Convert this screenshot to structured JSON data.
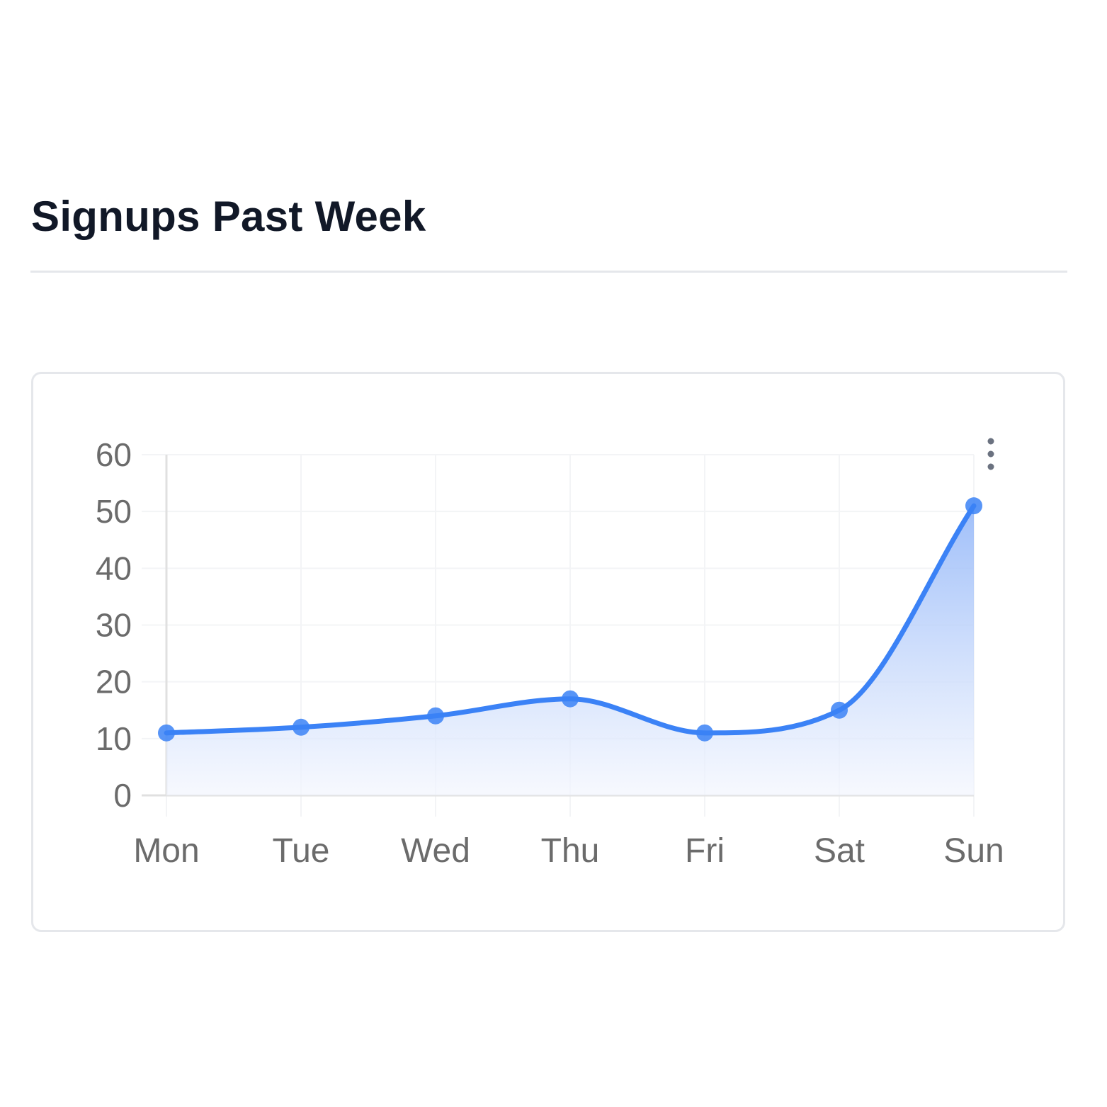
{
  "page": {
    "title": "Signups Past Week"
  },
  "colors": {
    "line": "#3b82f6",
    "fill_top": "#8fb4f8",
    "fill_bottom": "#f3f6fe",
    "title": "#111827",
    "tick": "#6b6b6b",
    "grid": "#f3f4f6",
    "axis": "#e0e0e0",
    "border": "#e5e7eb"
  },
  "chart_menu": {
    "icon": "kebab-menu-icon"
  },
  "chart_data": {
    "type": "area",
    "categories": [
      "Mon",
      "Tue",
      "Wed",
      "Thu",
      "Fri",
      "Sat",
      "Sun"
    ],
    "series": [
      {
        "values": [
          11,
          12,
          14,
          17,
          11,
          15,
          51
        ]
      }
    ],
    "y_ticks": [
      "0",
      "10",
      "20",
      "30",
      "40",
      "50",
      "60"
    ],
    "ylim": [
      0,
      60
    ],
    "grid": true,
    "smooth": true,
    "markers": true,
    "legend": false
  }
}
